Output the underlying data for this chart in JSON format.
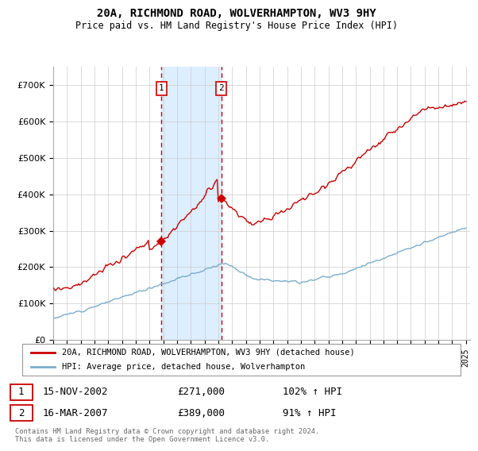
{
  "title": "20A, RICHMOND ROAD, WOLVERHAMPTON, WV3 9HY",
  "subtitle": "Price paid vs. HM Land Registry's House Price Index (HPI)",
  "legend_line1": "20A, RICHMOND ROAD, WOLVERHAMPTON, WV3 9HY (detached house)",
  "legend_line2": "HPI: Average price, detached house, Wolverhampton",
  "sale1_date": "15-NOV-2002",
  "sale1_price": "£271,000",
  "sale1_hpi": "102% ↑ HPI",
  "sale2_date": "16-MAR-2007",
  "sale2_price": "£389,000",
  "sale2_hpi": "91% ↑ HPI",
  "footnote": "Contains HM Land Registry data © Crown copyright and database right 2024.\nThis data is licensed under the Open Government Licence v3.0.",
  "red_color": "#cc0000",
  "blue_color": "#7aadcf",
  "shade_color": "#ddeeff",
  "sale1_year": 2002.875,
  "sale2_year": 2007.208,
  "sale1_price_val": 271000,
  "sale2_price_val": 389000,
  "ylim_max": 750000,
  "year_start": 1995,
  "year_end": 2025
}
